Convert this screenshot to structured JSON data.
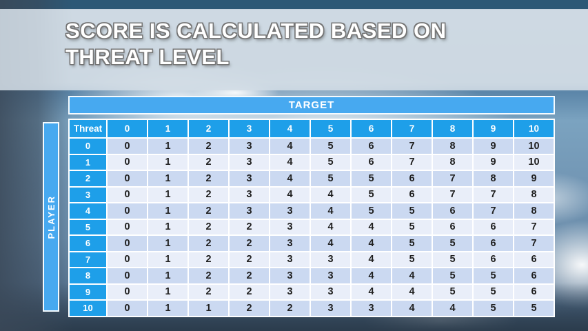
{
  "slide": {
    "title_line1": "SCORE IS CALCULATED BASED ON",
    "title_line2": "THREAT LEVEL"
  },
  "matrix": {
    "target_label": "TARGET",
    "player_label": "PLAYER",
    "corner_label": "Threat",
    "column_headers": [
      "0",
      "1",
      "2",
      "3",
      "4",
      "5",
      "6",
      "7",
      "8",
      "9",
      "10"
    ],
    "rows": [
      {
        "threat": "0",
        "values": [
          "0",
          "1",
          "2",
          "3",
          "4",
          "5",
          "6",
          "7",
          "8",
          "9",
          "10"
        ]
      },
      {
        "threat": "1",
        "values": [
          "0",
          "1",
          "2",
          "3",
          "4",
          "5",
          "6",
          "7",
          "8",
          "9",
          "10"
        ]
      },
      {
        "threat": "2",
        "values": [
          "0",
          "1",
          "2",
          "3",
          "4",
          "5",
          "5",
          "6",
          "7",
          "8",
          "9"
        ]
      },
      {
        "threat": "3",
        "values": [
          "0",
          "1",
          "2",
          "3",
          "4",
          "4",
          "5",
          "6",
          "7",
          "7",
          "8"
        ]
      },
      {
        "threat": "4",
        "values": [
          "0",
          "1",
          "2",
          "3",
          "3",
          "4",
          "5",
          "5",
          "6",
          "7",
          "8"
        ]
      },
      {
        "threat": "5",
        "values": [
          "0",
          "1",
          "2",
          "2",
          "3",
          "4",
          "4",
          "5",
          "6",
          "6",
          "7"
        ]
      },
      {
        "threat": "6",
        "values": [
          "0",
          "1",
          "2",
          "2",
          "3",
          "4",
          "4",
          "5",
          "5",
          "6",
          "7"
        ]
      },
      {
        "threat": "7",
        "values": [
          "0",
          "1",
          "2",
          "2",
          "3",
          "3",
          "4",
          "5",
          "5",
          "6",
          "6"
        ]
      },
      {
        "threat": "8",
        "values": [
          "0",
          "1",
          "2",
          "2",
          "3",
          "3",
          "4",
          "4",
          "5",
          "5",
          "6"
        ]
      },
      {
        "threat": "9",
        "values": [
          "0",
          "1",
          "2",
          "2",
          "3",
          "3",
          "4",
          "4",
          "5",
          "5",
          "6"
        ]
      },
      {
        "threat": "10",
        "values": [
          "0",
          "1",
          "1",
          "2",
          "2",
          "3",
          "3",
          "4",
          "4",
          "5",
          "5"
        ]
      }
    ]
  },
  "colors": {
    "accent_blue": "#1e9fe9",
    "bar_blue": "#47a9f0",
    "band_dark": "#cbd9f1",
    "band_light": "#e9eef9",
    "cell_text": "#202020",
    "grid_white": "#ffffff",
    "title_outline": "#757575"
  }
}
